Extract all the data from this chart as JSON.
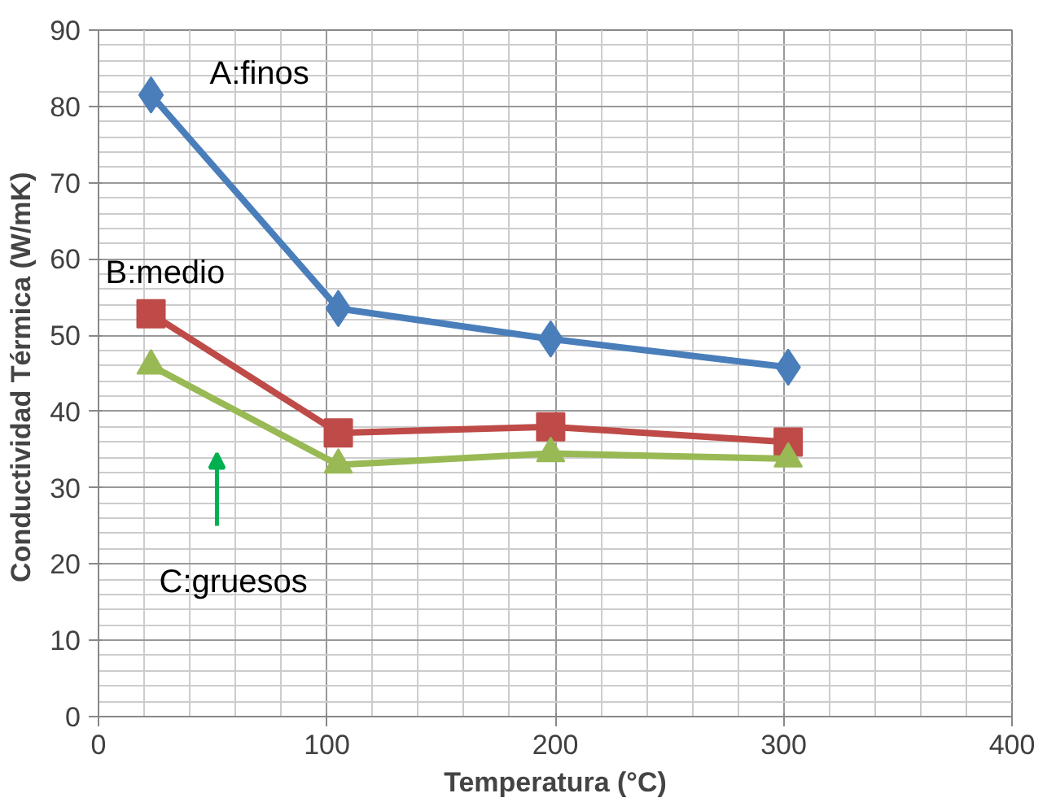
{
  "chart_data": {
    "type": "line",
    "xlabel": "Temperatura (°C)",
    "ylabel": "Conductividad  Térmica (W/mK)",
    "xlim": [
      0,
      400
    ],
    "xticks": [
      0,
      100,
      200,
      300,
      400
    ],
    "ylim": [
      0,
      90
    ],
    "yticks": [
      0,
      10,
      20,
      30,
      40,
      50,
      60,
      70,
      80,
      90
    ],
    "grid": true,
    "series": [
      {
        "name": "A:finos",
        "color": "#4a7ebb",
        "marker": "diamond",
        "x": [
          23,
          105,
          198,
          302
        ],
        "values": [
          81.5,
          53.5,
          49.5,
          45.8
        ]
      },
      {
        "name": "B:medio",
        "color": "#be4b48",
        "marker": "square",
        "x": [
          23,
          105,
          198,
          302
        ],
        "values": [
          52.8,
          37.2,
          38,
          36
        ]
      },
      {
        "name": "C:gruesos",
        "color": "#98b954",
        "marker": "triangle",
        "x": [
          23,
          105,
          198,
          302
        ],
        "values": [
          46,
          33,
          34.5,
          33.8
        ]
      }
    ]
  }
}
